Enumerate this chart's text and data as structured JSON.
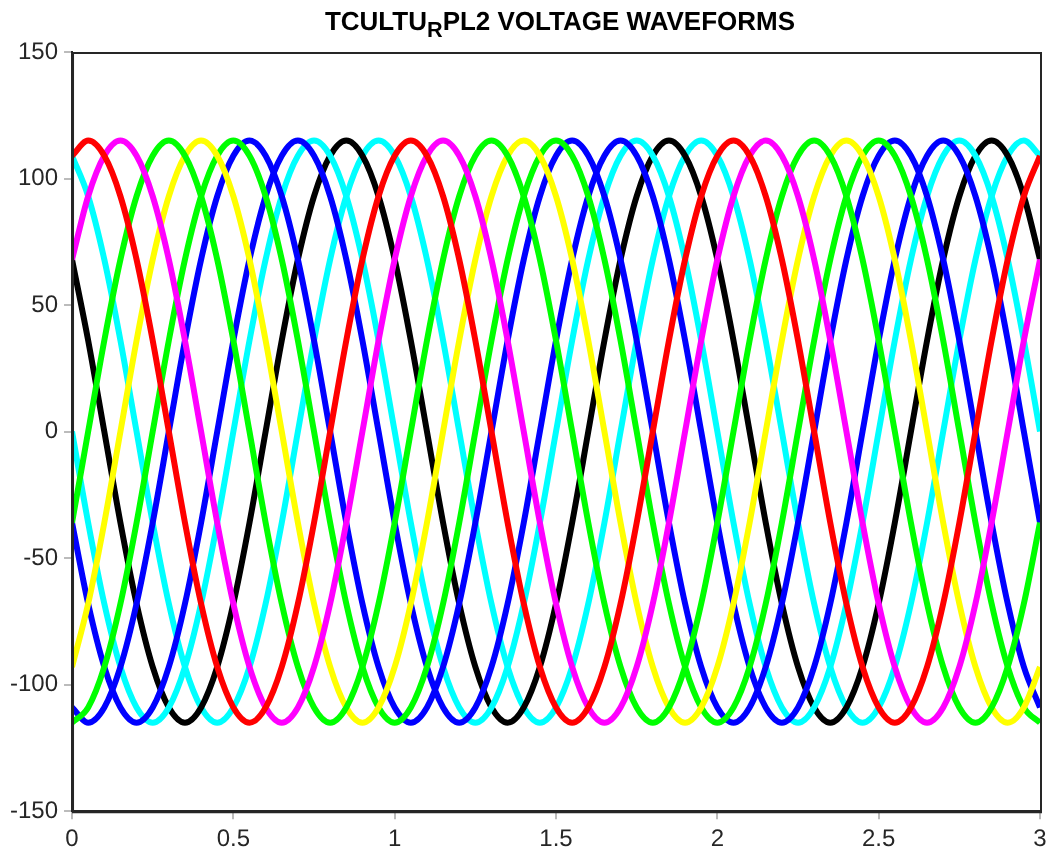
{
  "chart_data": {
    "type": "line",
    "title": "TCULTU$_{R}$PL2 VOLTAGE WAVEFORMS",
    "grid": false,
    "legend": false,
    "marker": "none",
    "line_style": "solid",
    "xlim": [
      0,
      3
    ],
    "xticks": [
      0,
      0.5,
      1,
      1.5,
      2,
      2.5,
      3
    ],
    "ylim": [
      -150,
      150
    ],
    "yticks": [
      -150,
      -100,
      -50,
      0,
      50,
      100,
      150
    ],
    "x": [
      0,
      0.05,
      0.1,
      0.15,
      0.2,
      0.25,
      0.3,
      0.35,
      0.4,
      0.45,
      0.5,
      0.55,
      0.6,
      0.65,
      0.7,
      0.75,
      0.8,
      0.85,
      0.9,
      0.95,
      1,
      1.05,
      1.1,
      1.15,
      1.2,
      1.25,
      1.3,
      1.35,
      1.4,
      1.45,
      1.5,
      1.55,
      1.6,
      1.65,
      1.7,
      1.75,
      1.8,
      1.85,
      1.9,
      1.95,
      2,
      2.05,
      2.1,
      2.15,
      2.2,
      2.25,
      2.3,
      2.35,
      2.4,
      2.45,
      2.5,
      2.55,
      2.6,
      2.65,
      2.7,
      2.75,
      2.8,
      2.85,
      2.9,
      2.95,
      3
    ],
    "series": [
      {
        "color": "#ff0000",
        "values": [
          109,
          115,
          109,
          93,
          68,
          36,
          0,
          -36,
          -68,
          -93,
          -109,
          -115,
          -109,
          -93,
          -68,
          -36,
          0,
          36,
          68,
          93,
          109,
          115,
          109,
          93,
          68,
          36,
          0,
          -36,
          -68,
          -93,
          -109,
          -115,
          -109,
          -93,
          -68,
          -36,
          0,
          36,
          68,
          93,
          109,
          115,
          109,
          93,
          68,
          36,
          0,
          -36,
          -68,
          -93,
          -109,
          -115,
          -109,
          -93,
          -68,
          -36,
          0,
          36,
          68,
          93,
          109
        ]
      },
      {
        "color": "#ff00ff",
        "values": [
          68,
          93,
          109,
          115,
          109,
          93,
          68,
          36,
          0,
          -36,
          -68,
          -93,
          -109,
          -115,
          -109,
          -93,
          -68,
          -36,
          0,
          36,
          68,
          93,
          109,
          115,
          109,
          93,
          68,
          36,
          0,
          -36,
          -68,
          -93,
          -109,
          -115,
          -109,
          -93,
          -68,
          -36,
          0,
          36,
          68,
          93,
          109,
          115,
          109,
          93,
          68,
          36,
          0,
          -36,
          -68,
          -93,
          -109,
          -115,
          -109,
          -93,
          -68,
          -36,
          0,
          36,
          68
        ]
      },
      {
        "color": "#00ff00",
        "values": [
          -36,
          0,
          36,
          68,
          93,
          109,
          115,
          109,
          93,
          68,
          36,
          0,
          -36,
          -68,
          -93,
          -109,
          -115,
          -109,
          -93,
          -68,
          -36,
          0,
          36,
          68,
          93,
          109,
          115,
          109,
          93,
          68,
          36,
          0,
          -36,
          -68,
          -93,
          -109,
          -115,
          -109,
          -93,
          -68,
          -36,
          0,
          36,
          68,
          93,
          109,
          115,
          109,
          93,
          68,
          36,
          0,
          -36,
          -68,
          -93,
          -109,
          -115,
          -109,
          -93,
          -68,
          -36
        ]
      },
      {
        "color": "#ffff00",
        "values": [
          -93,
          -68,
          -36,
          0,
          36,
          68,
          93,
          109,
          115,
          109,
          93,
          68,
          36,
          0,
          -36,
          -68,
          -93,
          -109,
          -115,
          -109,
          -93,
          -68,
          -36,
          0,
          36,
          68,
          93,
          109,
          115,
          109,
          93,
          68,
          36,
          0,
          -36,
          -68,
          -93,
          -109,
          -115,
          -109,
          -93,
          -68,
          -36,
          0,
          36,
          68,
          93,
          109,
          115,
          109,
          93,
          68,
          36,
          0,
          -36,
          -68,
          -93,
          -109,
          -115,
          -109,
          -93
        ]
      },
      {
        "color": "#00ff00",
        "values": [
          -115,
          -109,
          -93,
          -68,
          -36,
          0,
          36,
          68,
          93,
          109,
          115,
          109,
          93,
          68,
          36,
          0,
          -36,
          -68,
          -93,
          -109,
          -115,
          -109,
          -93,
          -68,
          -36,
          0,
          36,
          68,
          93,
          109,
          115,
          109,
          93,
          68,
          36,
          0,
          -36,
          -68,
          -93,
          -109,
          -115,
          -109,
          -93,
          -68,
          -36,
          0,
          36,
          68,
          93,
          109,
          115,
          109,
          93,
          68,
          36,
          0,
          -36,
          -68,
          -93,
          -109,
          -115
        ]
      },
      {
        "color": "#0000ff",
        "values": [
          -109,
          -115,
          -109,
          -93,
          -68,
          -36,
          0,
          36,
          68,
          93,
          109,
          115,
          109,
          93,
          68,
          36,
          0,
          -36,
          -68,
          -93,
          -109,
          -115,
          -109,
          -93,
          -68,
          -36,
          0,
          36,
          68,
          93,
          109,
          115,
          109,
          93,
          68,
          36,
          0,
          -36,
          -68,
          -93,
          -109,
          -115,
          -109,
          -93,
          -68,
          -36,
          0,
          36,
          68,
          93,
          109,
          115,
          109,
          93,
          68,
          36,
          0,
          -36,
          -68,
          -93,
          -109
        ]
      },
      {
        "color": "#0000ff",
        "values": [
          -36,
          -68,
          -93,
          -109,
          -115,
          -109,
          -93,
          -68,
          -36,
          0,
          36,
          68,
          93,
          109,
          115,
          109,
          93,
          68,
          36,
          0,
          -36,
          -68,
          -93,
          -109,
          -115,
          -109,
          -93,
          -68,
          -36,
          0,
          36,
          68,
          93,
          109,
          115,
          109,
          93,
          68,
          36,
          0,
          -36,
          -68,
          -93,
          -109,
          -115,
          -109,
          -93,
          -68,
          -36,
          0,
          36,
          68,
          93,
          109,
          115,
          109,
          93,
          68,
          36,
          0,
          -36
        ]
      },
      {
        "color": "#00ffff",
        "values": [
          0,
          -36,
          -68,
          -93,
          -109,
          -115,
          -109,
          -93,
          -68,
          -36,
          0,
          36,
          68,
          93,
          109,
          115,
          109,
          93,
          68,
          36,
          0,
          -36,
          -68,
          -93,
          -109,
          -115,
          -109,
          -93,
          -68,
          -36,
          0,
          36,
          68,
          93,
          109,
          115,
          109,
          93,
          68,
          36,
          0,
          -36,
          -68,
          -93,
          -109,
          -115,
          -109,
          -93,
          -68,
          -36,
          0,
          36,
          68,
          93,
          109,
          115,
          109,
          93,
          68,
          36,
          0
        ]
      },
      {
        "color": "#000000",
        "values": [
          68,
          36,
          0,
          -36,
          -68,
          -93,
          -109,
          -115,
          -109,
          -93,
          -68,
          -36,
          0,
          36,
          68,
          93,
          109,
          115,
          109,
          93,
          68,
          36,
          0,
          -36,
          -68,
          -93,
          -109,
          -115,
          -109,
          -93,
          -68,
          -36,
          0,
          36,
          68,
          93,
          109,
          115,
          109,
          93,
          68,
          36,
          0,
          -36,
          -68,
          -93,
          -109,
          -115,
          -109,
          -93,
          -68,
          -36,
          0,
          36,
          68,
          93,
          109,
          115,
          109,
          93,
          68
        ]
      },
      {
        "color": "#00ffff",
        "values": [
          109,
          93,
          68,
          36,
          0,
          -36,
          -68,
          -93,
          -109,
          -115,
          -109,
          -93,
          -68,
          -36,
          0,
          36,
          68,
          93,
          109,
          115,
          109,
          93,
          68,
          36,
          0,
          -36,
          -68,
          -93,
          -109,
          -115,
          -109,
          -93,
          -68,
          -36,
          0,
          36,
          68,
          93,
          109,
          115,
          109,
          93,
          68,
          36,
          0,
          -36,
          -68,
          -93,
          -109,
          -115,
          -109,
          -93,
          -68,
          -36,
          0,
          36,
          68,
          93,
          109,
          115,
          109
        ]
      }
    ]
  }
}
